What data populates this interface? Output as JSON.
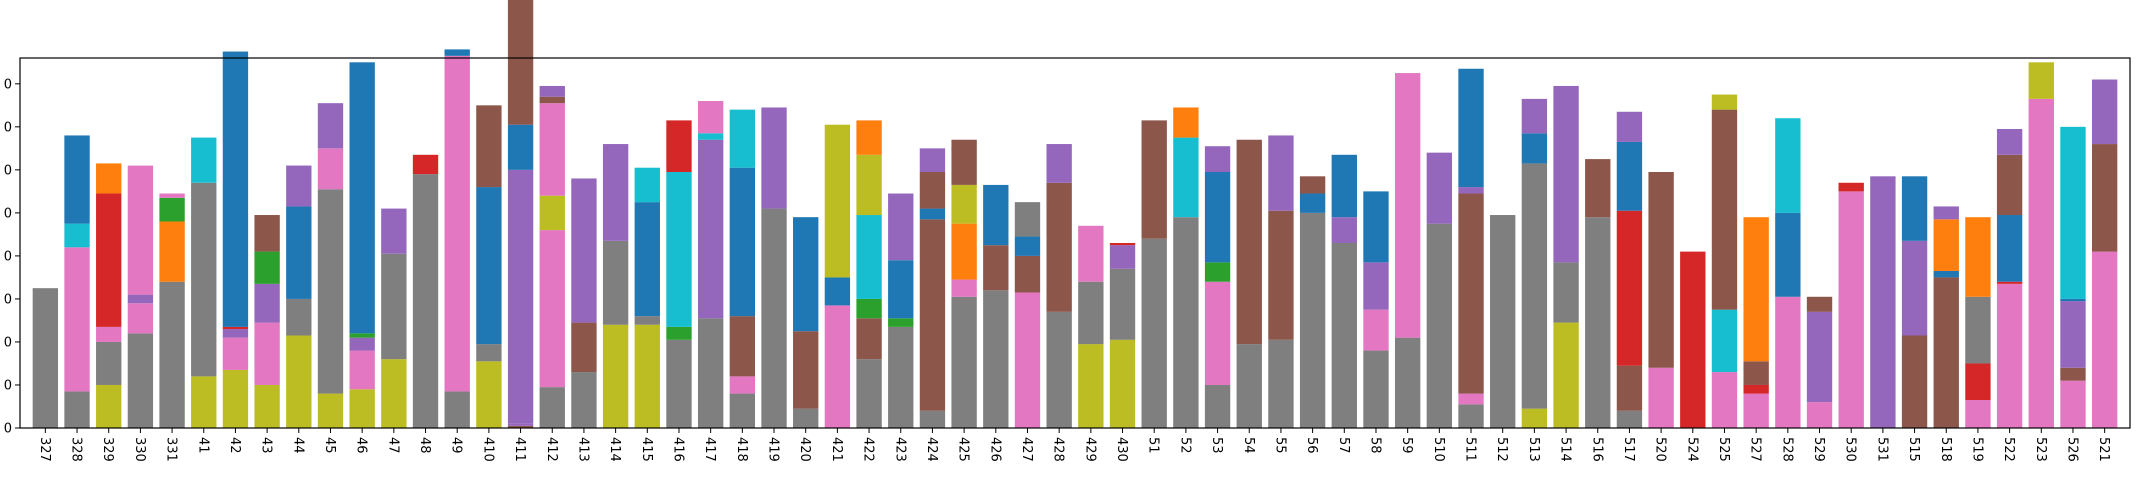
{
  "chart_data": {
    "type": "bar",
    "stacked": true,
    "ylim": [
      0,
      8.6
    ],
    "yticks": [
      0,
      1,
      2,
      3,
      4,
      5,
      6,
      7,
      8
    ],
    "yticklabels": [
      "0",
      "0",
      "0",
      "0",
      "0",
      "0",
      "0",
      "0",
      "0"
    ],
    "grid": false,
    "legend": "none",
    "palette": {
      "gray": "#7f7f7f",
      "olive": "#bcbd22",
      "pink": "#e377c2",
      "blue": "#1f77b4",
      "cyan": "#17becf",
      "red": "#d62728",
      "orange": "#ff7f0e",
      "green": "#2ca02c",
      "brown": "#8c564b",
      "purple": "#9467bd"
    },
    "categories": [
      "327",
      "328",
      "329",
      "330",
      "331",
      "41",
      "42",
      "43",
      "44",
      "45",
      "46",
      "47",
      "48",
      "49",
      "410",
      "411",
      "412",
      "413",
      "414",
      "415",
      "416",
      "417",
      "418",
      "419",
      "420",
      "421",
      "422",
      "423",
      "424",
      "425",
      "426",
      "427",
      "428",
      "429",
      "430",
      "51",
      "52",
      "53",
      "54",
      "55",
      "56",
      "57",
      "58",
      "59",
      "510",
      "511",
      "512",
      "513",
      "514",
      "516",
      "517",
      "520",
      "524",
      "525",
      "527",
      "528",
      "529",
      "530",
      "531",
      "515",
      "518",
      "519",
      "522",
      "523",
      "526",
      "521"
    ],
    "stacks": [
      [
        [
          "gray",
          3.25
        ]
      ],
      [
        [
          "gray",
          0.85
        ],
        [
          "pink",
          3.35
        ],
        [
          "cyan",
          0.55
        ],
        [
          "blue",
          2.05
        ]
      ],
      [
        [
          "olive",
          1.0
        ],
        [
          "gray",
          1.0
        ],
        [
          "pink",
          0.35
        ],
        [
          "red",
          3.1
        ],
        [
          "orange",
          0.7
        ]
      ],
      [
        [
          "gray",
          2.2
        ],
        [
          "pink",
          0.7
        ],
        [
          "purple",
          0.2
        ],
        [
          "pink",
          3.0
        ]
      ],
      [
        [
          "gray",
          3.4
        ],
        [
          "orange",
          1.4
        ],
        [
          "green",
          0.55
        ],
        [
          "pink",
          0.1
        ]
      ],
      [
        [
          "olive",
          1.2
        ],
        [
          "gray",
          4.5
        ],
        [
          "cyan",
          1.05
        ]
      ],
      [
        [
          "olive",
          1.35
        ],
        [
          "pink",
          0.75
        ],
        [
          "purple",
          0.2
        ],
        [
          "red",
          0.05
        ],
        [
          "blue",
          6.4
        ]
      ],
      [
        [
          "olive",
          1.0
        ],
        [
          "pink",
          1.45
        ],
        [
          "purple",
          0.9
        ],
        [
          "green",
          0.75
        ],
        [
          "brown",
          0.85
        ]
      ],
      [
        [
          "olive",
          2.15
        ],
        [
          "gray",
          0.85
        ],
        [
          "blue",
          2.15
        ],
        [
          "purple",
          0.95
        ]
      ],
      [
        [
          "olive",
          0.8
        ],
        [
          "gray",
          4.75
        ],
        [
          "pink",
          0.95
        ],
        [
          "purple",
          1.05
        ]
      ],
      [
        [
          "olive",
          0.9
        ],
        [
          "pink",
          0.9
        ],
        [
          "purple",
          0.3
        ],
        [
          "green",
          0.1
        ],
        [
          "blue",
          6.3
        ]
      ],
      [
        [
          "olive",
          1.6
        ],
        [
          "gray",
          2.45
        ],
        [
          "purple",
          1.05
        ]
      ],
      [
        [
          "gray",
          5.9
        ],
        [
          "red",
          0.45
        ]
      ],
      [
        [
          "gray",
          0.85
        ],
        [
          "pink",
          7.8
        ],
        [
          "blue",
          0.15
        ]
      ],
      [
        [
          "olive",
          1.55
        ],
        [
          "gray",
          0.4
        ],
        [
          "blue",
          3.65
        ],
        [
          "brown",
          1.9
        ]
      ],
      [
        [
          "brown",
          0.05
        ],
        [
          "purple",
          0.05
        ],
        [
          "purple",
          5.9
        ],
        [
          "blue",
          1.05
        ],
        [
          "brown",
          3.05
        ]
      ],
      [
        [
          "gray",
          0.95
        ],
        [
          "pink",
          3.65
        ],
        [
          "olive",
          0.8
        ],
        [
          "pink",
          2.15
        ],
        [
          "brown",
          0.15
        ],
        [
          "purple",
          0.25
        ]
      ],
      [
        [
          "gray",
          1.3
        ],
        [
          "brown",
          1.15
        ],
        [
          "purple",
          3.35
        ]
      ],
      [
        [
          "olive",
          2.4
        ],
        [
          "gray",
          1.95
        ],
        [
          "purple",
          2.25
        ]
      ],
      [
        [
          "olive",
          2.4
        ],
        [
          "gray",
          0.2
        ],
        [
          "blue",
          2.65
        ],
        [
          "cyan",
          0.8
        ]
      ],
      [
        [
          "gray",
          2.05
        ],
        [
          "green",
          0.3
        ],
        [
          "cyan",
          3.6
        ],
        [
          "red",
          1.2
        ]
      ],
      [
        [
          "gray",
          2.55
        ],
        [
          "purple",
          4.15
        ],
        [
          "cyan",
          0.15
        ],
        [
          "pink",
          0.75
        ]
      ],
      [
        [
          "gray",
          0.8
        ],
        [
          "pink",
          0.4
        ],
        [
          "brown",
          1.4
        ],
        [
          "blue",
          3.45
        ],
        [
          "cyan",
          1.35
        ]
      ],
      [
        [
          "gray",
          5.1
        ],
        [
          "purple",
          2.35
        ]
      ],
      [
        [
          "gray",
          0.45
        ],
        [
          "brown",
          1.8
        ],
        [
          "blue",
          2.65
        ]
      ],
      [
        [
          "pink",
          2.85
        ],
        [
          "blue",
          0.65
        ],
        [
          "olive",
          3.55
        ]
      ],
      [
        [
          "gray",
          1.6
        ],
        [
          "brown",
          0.95
        ],
        [
          "green",
          0.45
        ],
        [
          "cyan",
          1.95
        ],
        [
          "olive",
          1.4
        ],
        [
          "orange",
          0.8
        ]
      ],
      [
        [
          "gray",
          2.35
        ],
        [
          "green",
          0.2
        ],
        [
          "blue",
          1.35
        ],
        [
          "purple",
          1.55
        ]
      ],
      [
        [
          "gray",
          0.4
        ],
        [
          "brown",
          4.45
        ],
        [
          "blue",
          0.25
        ],
        [
          "brown",
          0.85
        ],
        [
          "purple",
          0.55
        ]
      ],
      [
        [
          "gray",
          3.05
        ],
        [
          "pink",
          0.4
        ],
        [
          "orange",
          1.3
        ],
        [
          "olive",
          0.9
        ],
        [
          "brown",
          1.05
        ]
      ],
      [
        [
          "gray",
          3.2
        ],
        [
          "brown",
          1.05
        ],
        [
          "blue",
          1.4
        ]
      ],
      [
        [
          "pink",
          3.15
        ],
        [
          "brown",
          0.85
        ],
        [
          "blue",
          0.45
        ],
        [
          "gray",
          0.8
        ]
      ],
      [
        [
          "gray",
          2.7
        ],
        [
          "brown",
          3.0
        ],
        [
          "purple",
          0.9
        ]
      ],
      [
        [
          "olive",
          1.95
        ],
        [
          "gray",
          1.45
        ],
        [
          "pink",
          1.3
        ]
      ],
      [
        [
          "olive",
          2.05
        ],
        [
          "gray",
          1.65
        ],
        [
          "purple",
          0.55
        ],
        [
          "red",
          0.05
        ]
      ],
      [
        [
          "gray",
          4.4
        ],
        [
          "brown",
          2.75
        ]
      ],
      [
        [
          "gray",
          4.9
        ],
        [
          "cyan",
          1.85
        ],
        [
          "orange",
          0.7
        ]
      ],
      [
        [
          "gray",
          1.0
        ],
        [
          "pink",
          2.4
        ],
        [
          "green",
          0.45
        ],
        [
          "blue",
          2.1
        ],
        [
          "purple",
          0.6
        ]
      ],
      [
        [
          "gray",
          1.95
        ],
        [
          "brown",
          4.75
        ]
      ],
      [
        [
          "gray",
          2.05
        ],
        [
          "brown",
          3.0
        ],
        [
          "purple",
          1.75
        ]
      ],
      [
        [
          "gray",
          5.0
        ],
        [
          "blue",
          0.45
        ],
        [
          "brown",
          0.4
        ]
      ],
      [
        [
          "gray",
          4.3
        ],
        [
          "purple",
          0.6
        ],
        [
          "blue",
          1.45
        ]
      ],
      [
        [
          "gray",
          1.8
        ],
        [
          "pink",
          0.95
        ],
        [
          "purple",
          1.1
        ],
        [
          "blue",
          1.65
        ]
      ],
      [
        [
          "gray",
          2.1
        ],
        [
          "pink",
          6.15
        ]
      ],
      [
        [
          "gray",
          4.75
        ],
        [
          "purple",
          1.65
        ]
      ],
      [
        [
          "gray",
          0.55
        ],
        [
          "pink",
          0.25
        ],
        [
          "brown",
          4.65
        ],
        [
          "purple",
          0.15
        ],
        [
          "blue",
          2.75
        ]
      ],
      [
        [
          "gray",
          4.95
        ]
      ],
      [
        [
          "olive",
          0.45
        ],
        [
          "gray",
          5.7
        ],
        [
          "blue",
          0.7
        ],
        [
          "purple",
          0.8
        ]
      ],
      [
        [
          "olive",
          2.45
        ],
        [
          "gray",
          1.4
        ],
        [
          "purple",
          4.1
        ]
      ],
      [
        [
          "gray",
          4.9
        ],
        [
          "brown",
          1.35
        ]
      ],
      [
        [
          "gray",
          0.4
        ],
        [
          "brown",
          1.05
        ],
        [
          "red",
          3.6
        ],
        [
          "blue",
          1.6
        ],
        [
          "purple",
          0.7
        ]
      ],
      [
        [
          "pink",
          1.4
        ],
        [
          "brown",
          4.55
        ]
      ],
      [
        [
          "red",
          4.1
        ]
      ],
      [
        [
          "pink",
          1.3
        ],
        [
          "cyan",
          1.45
        ],
        [
          "brown",
          4.65
        ],
        [
          "olive",
          0.35
        ]
      ],
      [
        [
          "pink",
          0.8
        ],
        [
          "red",
          0.2
        ],
        [
          "brown",
          0.55
        ],
        [
          "orange",
          3.35
        ]
      ],
      [
        [
          "pink",
          3.05
        ],
        [
          "blue",
          1.95
        ],
        [
          "cyan",
          2.2
        ]
      ],
      [
        [
          "pink",
          0.6
        ],
        [
          "purple",
          2.1
        ],
        [
          "brown",
          0.35
        ]
      ],
      [
        [
          "pink",
          5.5
        ],
        [
          "red",
          0.2
        ]
      ],
      [
        [
          "purple",
          5.85
        ]
      ],
      [
        [
          "brown",
          2.15
        ],
        [
          "purple",
          2.2
        ],
        [
          "blue",
          1.5
        ]
      ],
      [
        [
          "brown",
          3.5
        ],
        [
          "blue",
          0.15
        ],
        [
          "orange",
          1.2
        ],
        [
          "purple",
          0.3
        ]
      ],
      [
        [
          "pink",
          0.65
        ],
        [
          "red",
          0.85
        ],
        [
          "gray",
          1.55
        ],
        [
          "orange",
          1.85
        ]
      ],
      [
        [
          "pink",
          3.35
        ],
        [
          "red",
          0.05
        ],
        [
          "blue",
          1.55
        ],
        [
          "brown",
          1.4
        ],
        [
          "purple",
          0.6
        ]
      ],
      [
        [
          "pink",
          7.65
        ],
        [
          "olive",
          0.85
        ]
      ],
      [
        [
          "pink",
          1.1
        ],
        [
          "brown",
          0.3
        ],
        [
          "purple",
          1.55
        ],
        [
          "blue",
          0.05
        ],
        [
          "cyan",
          4.0
        ]
      ],
      [
        [
          "pink",
          4.1
        ],
        [
          "brown",
          2.5
        ],
        [
          "purple",
          1.5
        ]
      ]
    ]
  }
}
